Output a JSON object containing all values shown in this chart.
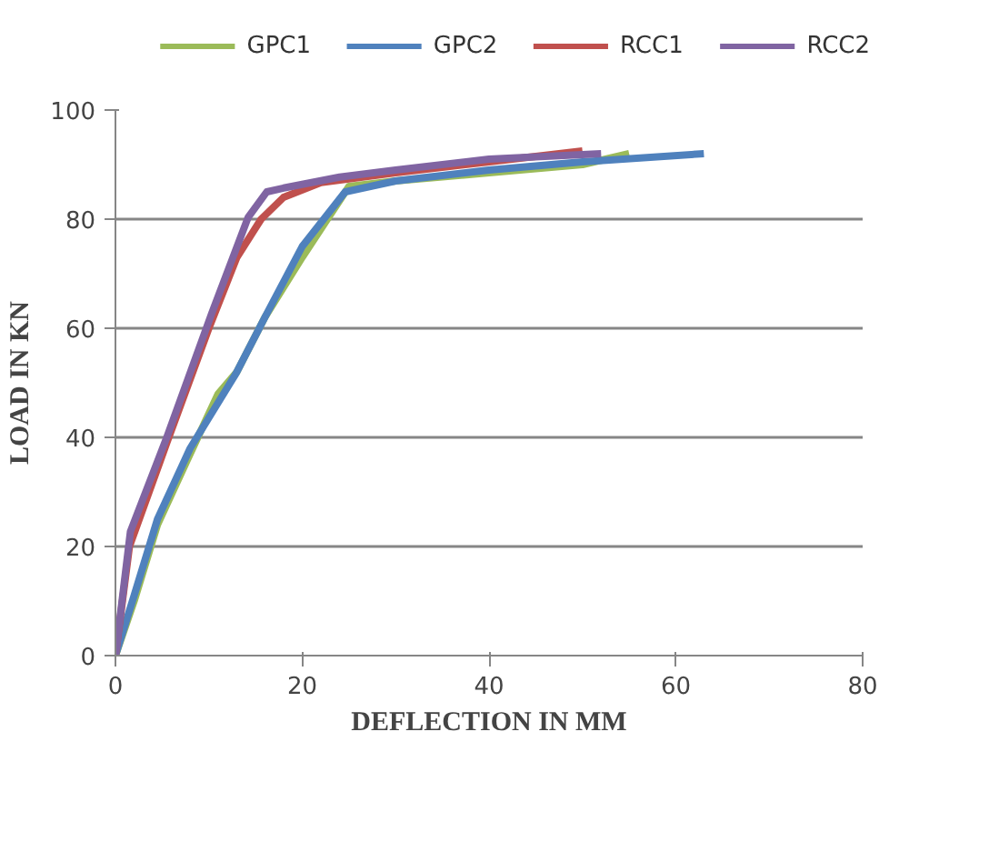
{
  "chart_data": {
    "type": "line",
    "xlabel": "DEFLECTION IN MM",
    "ylabel": "LOAD IN KN",
    "xlim": [
      0,
      80
    ],
    "ylim": [
      0,
      100
    ],
    "xticks": [
      0,
      20,
      40,
      60,
      80
    ],
    "yticks": [
      0,
      20,
      40,
      60,
      80,
      100
    ],
    "grid": "y",
    "legend": "top",
    "marker": "none",
    "line_style": "solid",
    "series": [
      {
        "name": "GPC1",
        "color": "#9bbb59",
        "x": [
          0,
          2,
          4.5,
          8,
          11,
          13,
          16,
          20,
          25,
          30,
          40,
          50,
          55
        ],
        "values": [
          0,
          10,
          24,
          37,
          48,
          52,
          62,
          73,
          86,
          87,
          88.5,
          90,
          92
        ]
      },
      {
        "name": "GPC2",
        "color": "#4f81bd",
        "x": [
          0,
          2,
          4.5,
          8,
          12.9,
          16,
          20,
          24.6,
          30,
          40,
          50,
          63
        ],
        "values": [
          0,
          11,
          25,
          38,
          51.7,
          62,
          75,
          85,
          87,
          89,
          90.5,
          92
        ]
      },
      {
        "name": "RCC1",
        "color": "#c0504d",
        "x": [
          0,
          1.5,
          5.5,
          10,
          13,
          15.6,
          18,
          22,
          30,
          40,
          50
        ],
        "values": [
          0,
          20,
          39,
          60,
          73,
          80,
          84,
          86.7,
          88.5,
          90.5,
          92.5
        ]
      },
      {
        "name": "RCC2",
        "color": "#8064a2",
        "x": [
          0,
          1.6,
          5.5,
          10.3,
          14.2,
          16.2,
          18,
          24,
          30,
          40,
          52
        ],
        "values": [
          0,
          22.7,
          40,
          62.7,
          80.3,
          85,
          85.7,
          87.7,
          89,
          91,
          92
        ]
      }
    ]
  }
}
